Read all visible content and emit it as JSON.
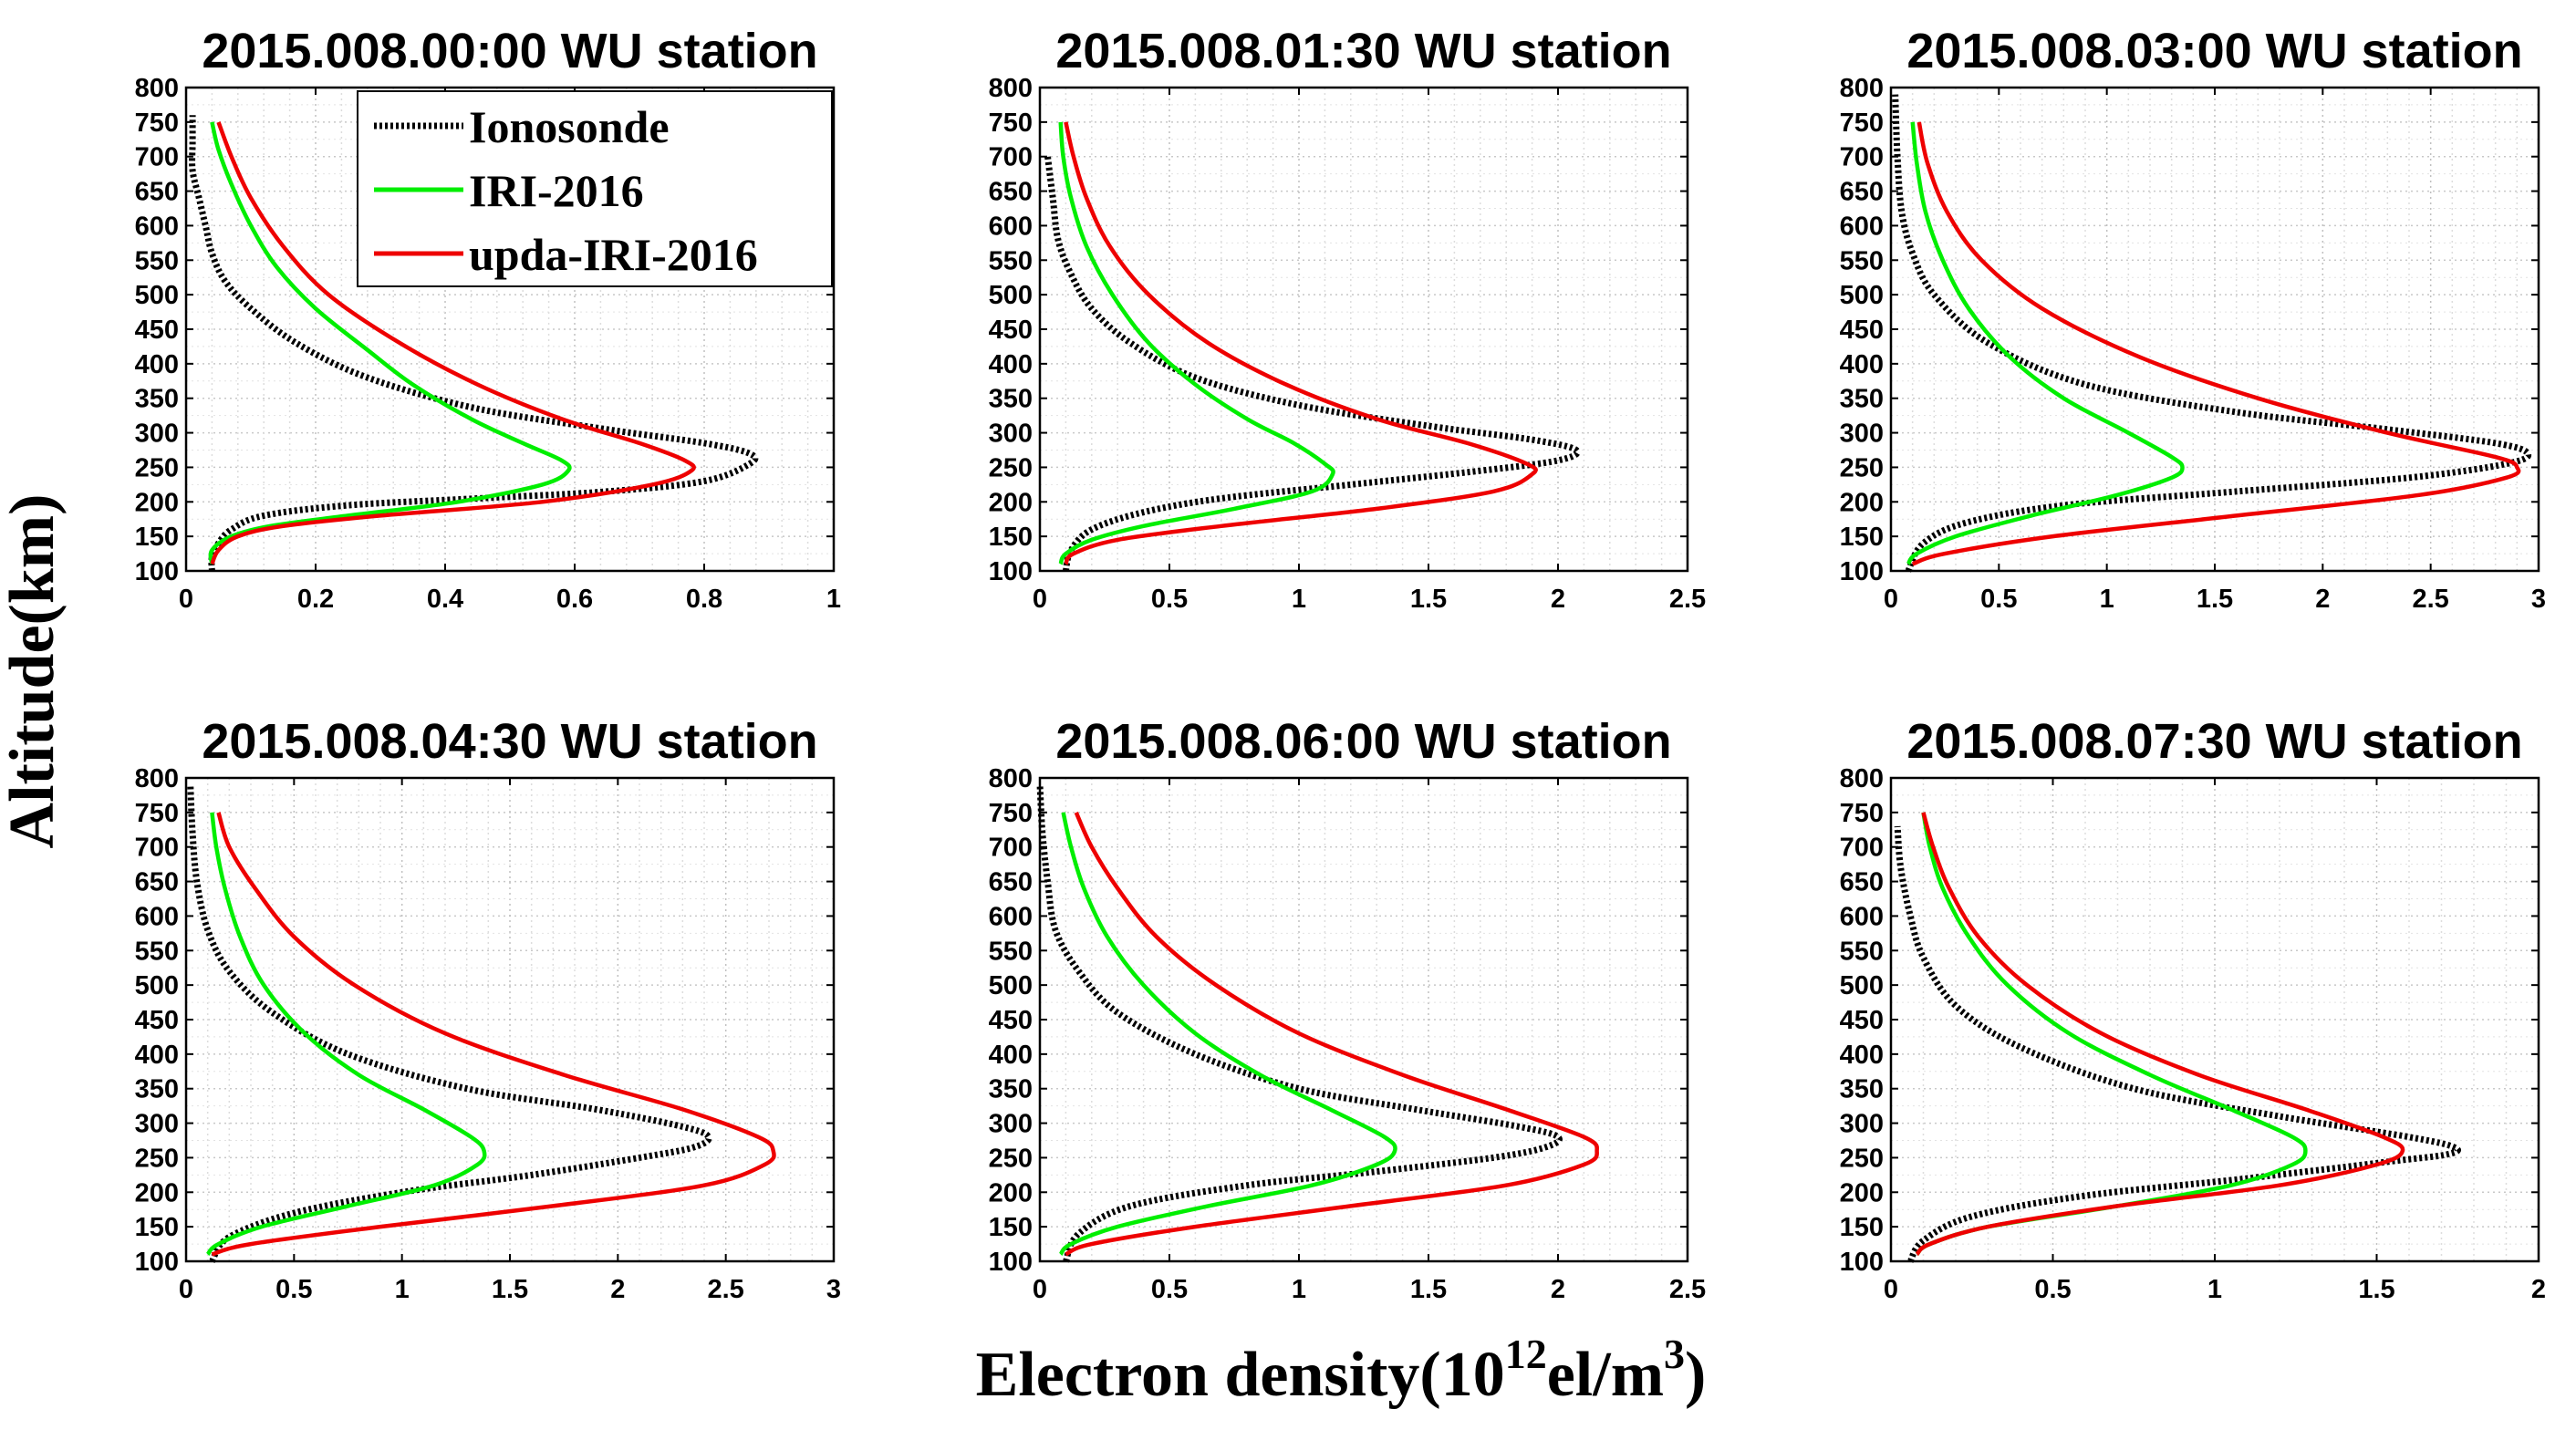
{
  "figure": {
    "ylabel": "Altitude(km)",
    "xlabel_prefix": "Electron density(10",
    "xlabel_exp": "12",
    "xlabel_unit": "el/m",
    "xlabel_unit_exp": "3"
  },
  "legend": [
    {
      "name": "Ionosonde",
      "color": "#000000",
      "style": "dotted"
    },
    {
      "name": "IRI-2016",
      "color": "#00ee00",
      "style": "solid"
    },
    {
      "name": "upda-IRI-2016",
      "color": "#ee0000",
      "style": "solid"
    }
  ],
  "chart_data": [
    {
      "type": "line",
      "title": "2015.008.00:00 WU station",
      "xlim": [
        0,
        1
      ],
      "ylim": [
        100,
        800
      ],
      "xticks": [
        0,
        0.2,
        0.4,
        0.6,
        0.8,
        1
      ],
      "xtick_labels": [
        "0",
        "0.2",
        "0.4",
        "0.6",
        "0.8",
        "1"
      ],
      "yticks": [
        100,
        150,
        200,
        250,
        300,
        350,
        400,
        450,
        500,
        550,
        600,
        650,
        700,
        750,
        800
      ],
      "ytick_labels": [
        "100",
        "150",
        "200",
        "250",
        "300",
        "350",
        "400",
        "450",
        "500",
        "550",
        "600",
        "650",
        "700",
        "750",
        "800"
      ],
      "grid": true,
      "series": [
        {
          "name": "Ionosonde",
          "x": [
            0.04,
            0.04,
            0.05,
            0.07,
            0.12,
            0.25,
            0.45,
            0.65,
            0.8,
            0.87,
            0.87,
            0.8,
            0.65,
            0.45,
            0.28,
            0.17,
            0.1,
            0.06,
            0.04,
            0.03,
            0.02,
            0.01,
            0.01,
            0.01
          ],
          "y": [
            100,
            120,
            140,
            160,
            180,
            195,
            205,
            215,
            230,
            255,
            270,
            285,
            305,
            335,
            380,
            430,
            480,
            520,
            560,
            600,
            640,
            680,
            720,
            760
          ]
        },
        {
          "name": "IRI-2016",
          "x": [
            0.04,
            0.04,
            0.07,
            0.13,
            0.25,
            0.42,
            0.55,
            0.59,
            0.58,
            0.52,
            0.44,
            0.35,
            0.28,
            0.2,
            0.14,
            0.1,
            0.07,
            0.05,
            0.04
          ],
          "y": [
            110,
            130,
            150,
            165,
            180,
            200,
            225,
            245,
            260,
            285,
            320,
            370,
            420,
            480,
            540,
            600,
            660,
            710,
            750
          ]
        },
        {
          "name": "upda-IRI-2016",
          "x": [
            0.04,
            0.05,
            0.08,
            0.15,
            0.3,
            0.55,
            0.72,
            0.78,
            0.77,
            0.7,
            0.58,
            0.45,
            0.33,
            0.22,
            0.15,
            0.1,
            0.07,
            0.05
          ],
          "y": [
            110,
            130,
            150,
            165,
            180,
            200,
            225,
            245,
            260,
            285,
            320,
            370,
            430,
            500,
            570,
            640,
            700,
            750
          ]
        }
      ]
    },
    {
      "type": "line",
      "title": "2015.008.01:30 WU station",
      "xlim": [
        0,
        2.5
      ],
      "ylim": [
        100,
        800
      ],
      "xticks": [
        0,
        0.5,
        1,
        1.5,
        2,
        2.5
      ],
      "xtick_labels": [
        "0",
        "0.5",
        "1",
        "1.5",
        "2",
        "2.5"
      ],
      "yticks": [
        100,
        150,
        200,
        250,
        300,
        350,
        400,
        450,
        500,
        550,
        600,
        650,
        700,
        750,
        800
      ],
      "ytick_labels": [
        "100",
        "150",
        "200",
        "250",
        "300",
        "350",
        "400",
        "450",
        "500",
        "550",
        "600",
        "650",
        "700",
        "750",
        "800"
      ],
      "grid": true,
      "series": [
        {
          "name": "Ionosonde",
          "x": [
            0.1,
            0.12,
            0.2,
            0.4,
            0.7,
            1.2,
            1.7,
            2.0,
            2.07,
            1.9,
            1.5,
            1.0,
            0.6,
            0.35,
            0.2,
            0.12,
            0.07,
            0.05,
            0.03
          ],
          "y": [
            100,
            130,
            160,
            185,
            205,
            225,
            245,
            260,
            275,
            290,
            310,
            340,
            380,
            430,
            480,
            530,
            580,
            640,
            700
          ]
        },
        {
          "name": "IRI-2016",
          "x": [
            0.08,
            0.1,
            0.2,
            0.4,
            0.75,
            1.05,
            1.13,
            1.1,
            0.98,
            0.8,
            0.6,
            0.42,
            0.28,
            0.18,
            0.12,
            0.09,
            0.08
          ],
          "y": [
            110,
            125,
            145,
            165,
            190,
            215,
            240,
            255,
            285,
            320,
            370,
            430,
            500,
            570,
            640,
            700,
            750
          ]
        },
        {
          "name": "upda-IRI-2016",
          "x": [
            0.1,
            0.13,
            0.3,
            0.7,
            1.3,
            1.75,
            1.9,
            1.88,
            1.65,
            1.3,
            0.95,
            0.65,
            0.42,
            0.27,
            0.18,
            0.13,
            0.1
          ],
          "y": [
            110,
            125,
            145,
            165,
            190,
            215,
            240,
            255,
            285,
            320,
            370,
            430,
            500,
            570,
            640,
            700,
            750
          ]
        }
      ]
    },
    {
      "type": "line",
      "title": "2015.008.03:00 WU station",
      "xlim": [
        0,
        3
      ],
      "ylim": [
        100,
        800
      ],
      "xticks": [
        0,
        0.5,
        1,
        1.5,
        2,
        2.5,
        3
      ],
      "xtick_labels": [
        "0",
        "0.5",
        "1",
        "1.5",
        "2",
        "2.5",
        "3"
      ],
      "yticks": [
        100,
        150,
        200,
        250,
        300,
        350,
        400,
        450,
        500,
        550,
        600,
        650,
        700,
        750,
        800
      ],
      "ytick_labels": [
        "100",
        "150",
        "200",
        "250",
        "300",
        "350",
        "400",
        "450",
        "500",
        "550",
        "600",
        "650",
        "700",
        "750",
        "800"
      ],
      "grid": true,
      "series": [
        {
          "name": "Ionosonde",
          "x": [
            0.08,
            0.15,
            0.35,
            0.8,
            1.6,
            2.4,
            2.85,
            2.95,
            2.8,
            2.3,
            1.6,
            0.9,
            0.45,
            0.2,
            0.1,
            0.05,
            0.03,
            0.02
          ],
          "y": [
            100,
            140,
            170,
            195,
            215,
            235,
            255,
            270,
            285,
            305,
            330,
            370,
            430,
            500,
            560,
            620,
            700,
            790
          ]
        },
        {
          "name": "IRI-2016",
          "x": [
            0.08,
            0.12,
            0.3,
            0.65,
            1.05,
            1.3,
            1.35,
            1.3,
            1.1,
            0.8,
            0.55,
            0.36,
            0.24,
            0.16,
            0.12,
            0.1
          ],
          "y": [
            110,
            125,
            150,
            180,
            210,
            235,
            250,
            265,
            300,
            350,
            410,
            480,
            550,
            620,
            690,
            750
          ]
        },
        {
          "name": "upda-IRI-2016",
          "x": [
            0.1,
            0.25,
            0.75,
            1.6,
            2.45,
            2.85,
            2.9,
            2.8,
            2.3,
            1.7,
            1.15,
            0.7,
            0.42,
            0.26,
            0.17,
            0.13
          ],
          "y": [
            110,
            125,
            150,
            180,
            210,
            235,
            250,
            265,
            300,
            350,
            410,
            480,
            550,
            620,
            690,
            750
          ]
        }
      ]
    },
    {
      "type": "line",
      "title": "2015.008.04:30 WU station",
      "xlim": [
        0,
        3
      ],
      "ylim": [
        100,
        800
      ],
      "xticks": [
        0,
        0.5,
        1,
        1.5,
        2,
        2.5,
        3
      ],
      "xtick_labels": [
        "0",
        "0.5",
        "1",
        "1.5",
        "2",
        "2.5",
        "3"
      ],
      "yticks": [
        100,
        150,
        200,
        250,
        300,
        350,
        400,
        450,
        500,
        550,
        600,
        650,
        700,
        750,
        800
      ],
      "ytick_labels": [
        "100",
        "150",
        "200",
        "250",
        "300",
        "350",
        "400",
        "450",
        "500",
        "550",
        "600",
        "650",
        "700",
        "750",
        "800"
      ],
      "grid": true,
      "series": [
        {
          "name": "Ionosonde",
          "x": [
            0.12,
            0.2,
            0.5,
            1.0,
            1.6,
            2.1,
            2.35,
            2.42,
            2.3,
            1.9,
            1.3,
            0.75,
            0.4,
            0.2,
            0.1,
            0.05,
            0.03,
            0.02
          ],
          "y": [
            100,
            135,
            170,
            200,
            225,
            250,
            265,
            280,
            295,
            320,
            350,
            400,
            460,
            520,
            580,
            650,
            720,
            790
          ]
        },
        {
          "name": "IRI-2016",
          "x": [
            0.1,
            0.15,
            0.35,
            0.75,
            1.15,
            1.35,
            1.38,
            1.32,
            1.1,
            0.8,
            0.55,
            0.36,
            0.25,
            0.18,
            0.14,
            0.12
          ],
          "y": [
            110,
            125,
            150,
            180,
            210,
            240,
            260,
            280,
            320,
            370,
            430,
            500,
            570,
            640,
            700,
            750
          ]
        },
        {
          "name": "upda-IRI-2016",
          "x": [
            0.12,
            0.3,
            0.9,
            1.7,
            2.4,
            2.68,
            2.72,
            2.65,
            2.3,
            1.75,
            1.2,
            0.78,
            0.5,
            0.32,
            0.2,
            0.15
          ],
          "y": [
            110,
            125,
            150,
            180,
            210,
            240,
            260,
            280,
            320,
            370,
            430,
            500,
            570,
            640,
            700,
            750
          ]
        }
      ]
    },
    {
      "type": "line",
      "title": "2015.008.06:00 WU station",
      "xlim": [
        0,
        2.5
      ],
      "ylim": [
        100,
        800
      ],
      "xticks": [
        0,
        0.5,
        1,
        1.5,
        2,
        2.5
      ],
      "xtick_labels": [
        "0",
        "0.5",
        "1",
        "1.5",
        "2",
        "2.5"
      ],
      "yticks": [
        100,
        150,
        200,
        250,
        300,
        350,
        400,
        450,
        500,
        550,
        600,
        650,
        700,
        750,
        800
      ],
      "ytick_labels": [
        "100",
        "150",
        "200",
        "250",
        "300",
        "350",
        "400",
        "450",
        "500",
        "550",
        "600",
        "650",
        "700",
        "750",
        "800"
      ],
      "grid": true,
      "series": [
        {
          "name": "Ionosonde",
          "x": [
            0.1,
            0.15,
            0.35,
            0.8,
            1.3,
            1.75,
            1.95,
            2.0,
            1.85,
            1.45,
            1.0,
            0.6,
            0.3,
            0.15,
            0.06,
            0.03,
            0.01,
            0.0
          ],
          "y": [
            100,
            140,
            180,
            210,
            230,
            250,
            265,
            280,
            295,
            320,
            350,
            400,
            460,
            520,
            580,
            650,
            720,
            790
          ]
        },
        {
          "name": "IRI-2016",
          "x": [
            0.08,
            0.12,
            0.3,
            0.65,
            1.05,
            1.3,
            1.37,
            1.33,
            1.12,
            0.85,
            0.6,
            0.4,
            0.26,
            0.17,
            0.12,
            0.09
          ],
          "y": [
            110,
            125,
            150,
            180,
            210,
            240,
            260,
            280,
            320,
            370,
            430,
            500,
            570,
            640,
            700,
            750
          ]
        },
        {
          "name": "upda-IRI-2016",
          "x": [
            0.1,
            0.2,
            0.6,
            1.2,
            1.8,
            2.1,
            2.15,
            2.1,
            1.8,
            1.4,
            1.0,
            0.68,
            0.45,
            0.3,
            0.2,
            0.14
          ],
          "y": [
            110,
            125,
            150,
            180,
            210,
            240,
            260,
            280,
            320,
            370,
            430,
            500,
            570,
            640,
            700,
            750
          ]
        }
      ]
    },
    {
      "type": "line",
      "title": "2015.008.07:30 WU station",
      "xlim": [
        0,
        2
      ],
      "ylim": [
        100,
        800
      ],
      "xticks": [
        0,
        0.5,
        1,
        1.5,
        2
      ],
      "xtick_labels": [
        "0",
        "0.5",
        "1",
        "1.5",
        "2"
      ],
      "yticks": [
        100,
        150,
        200,
        250,
        300,
        350,
        400,
        450,
        500,
        550,
        600,
        650,
        700,
        750,
        800
      ],
      "ytick_labels": [
        "100",
        "150",
        "200",
        "250",
        "300",
        "350",
        "400",
        "450",
        "500",
        "550",
        "600",
        "650",
        "700",
        "750",
        "800"
      ],
      "grid": true,
      "series": [
        {
          "name": "Ionosonde",
          "x": [
            0.06,
            0.1,
            0.25,
            0.6,
            1.1,
            1.55,
            1.72,
            1.74,
            1.6,
            1.2,
            0.75,
            0.4,
            0.2,
            0.1,
            0.06,
            0.03,
            0.02
          ],
          "y": [
            100,
            130,
            165,
            195,
            220,
            245,
            255,
            265,
            280,
            310,
            350,
            410,
            470,
            540,
            600,
            670,
            730
          ]
        },
        {
          "name": "IRI-2016",
          "x": [
            0.08,
            0.12,
            0.3,
            0.7,
            1.05,
            1.24,
            1.28,
            1.24,
            1.05,
            0.8,
            0.55,
            0.36,
            0.24,
            0.16,
            0.12,
            0.1
          ],
          "y": [
            110,
            125,
            150,
            180,
            210,
            240,
            260,
            280,
            320,
            370,
            430,
            500,
            570,
            640,
            700,
            750
          ]
        },
        {
          "name": "upda-IRI-2016",
          "x": [
            0.08,
            0.12,
            0.3,
            0.7,
            1.2,
            1.5,
            1.58,
            1.52,
            1.28,
            0.95,
            0.65,
            0.42,
            0.27,
            0.18,
            0.13,
            0.1
          ],
          "y": [
            110,
            125,
            150,
            180,
            210,
            240,
            260,
            280,
            320,
            370,
            430,
            500,
            570,
            640,
            700,
            750
          ]
        }
      ]
    }
  ]
}
